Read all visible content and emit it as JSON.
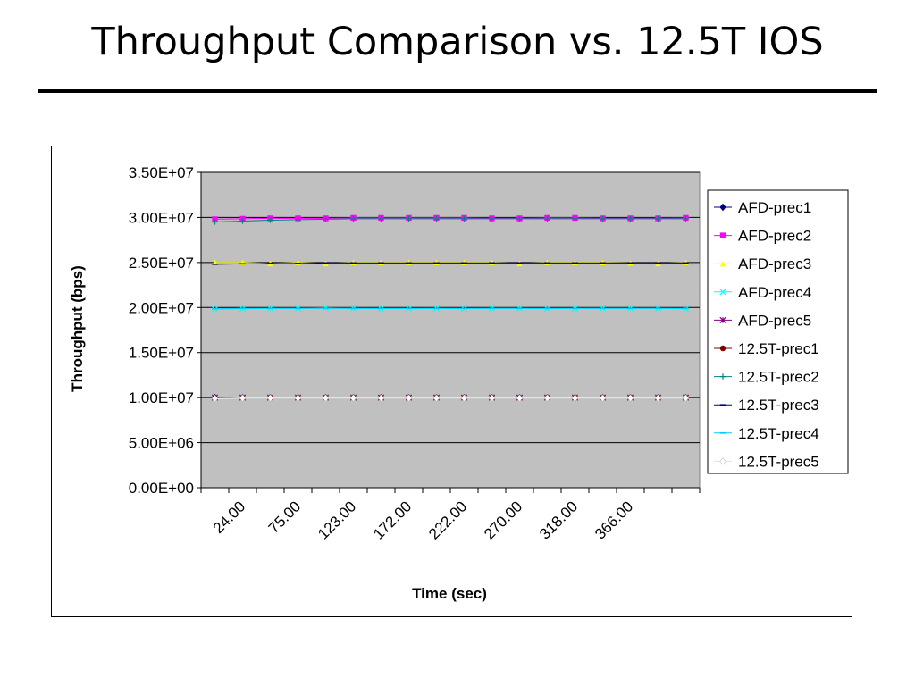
{
  "slide": {
    "title": "Throughput Comparison vs. 12.5T IOS"
  },
  "chart_data": {
    "type": "line",
    "title": "",
    "xlabel": "Time (sec)",
    "ylabel": "Throughput (bps)",
    "ylim": [
      0,
      35000000
    ],
    "y_ticks": [
      "0.00E+00",
      "5.00E+06",
      "1.00E+07",
      "1.50E+07",
      "2.00E+07",
      "2.50E+07",
      "3.00E+07",
      "3.50E+07"
    ],
    "x_tick_labels": [
      "24.00",
      "75.00",
      "123.00",
      "172.00",
      "222.00",
      "270.00",
      "318.00",
      "366.00"
    ],
    "grid": "horizontal",
    "plot_background": "#C0C0C0",
    "legend_position": "right",
    "point_count": 18,
    "series": [
      {
        "name": "AFD-prec1",
        "color": "#000080",
        "marker": "diamond",
        "values": [
          10000000,
          10000000,
          10000000,
          10000000,
          10000000,
          10000000,
          10000000,
          10000000,
          10000000,
          10000000,
          10000000,
          10000000,
          10000000,
          10000000,
          10000000,
          10000000,
          10000000,
          10000000
        ]
      },
      {
        "name": "AFD-prec2",
        "color": "#FF00FF",
        "marker": "square",
        "values": [
          29800000,
          29850000,
          29900000,
          29900000,
          29900000,
          29950000,
          29950000,
          29950000,
          29950000,
          29950000,
          29900000,
          29900000,
          29950000,
          29950000,
          29900000,
          29900000,
          29900000,
          29950000
        ]
      },
      {
        "name": "AFD-prec3",
        "color": "#FFFF00",
        "marker": "triangle",
        "values": [
          25000000,
          25000000,
          24900000,
          25000000,
          24900000,
          25000000,
          25000000,
          25000000,
          25000000,
          25000000,
          25000000,
          24900000,
          25000000,
          25000000,
          25000000,
          24950000,
          24900000,
          25000000
        ]
      },
      {
        "name": "AFD-prec4",
        "color": "#00FFFF",
        "marker": "x",
        "values": [
          19800000,
          19850000,
          19900000,
          19900000,
          19950000,
          19900000,
          19850000,
          19850000,
          19900000,
          19850000,
          19900000,
          19900000,
          19850000,
          19900000,
          19900000,
          19900000,
          19900000,
          19850000
        ]
      },
      {
        "name": "AFD-prec5",
        "color": "#800080",
        "marker": "star",
        "values": [
          10000000,
          10000000,
          10000000,
          10000000,
          10000000,
          10000000,
          10000000,
          10000000,
          10000000,
          10000000,
          10000000,
          10000000,
          10000000,
          10000000,
          10000000,
          10000000,
          10000000,
          10000000
        ]
      },
      {
        "name": "12.5T-prec1",
        "color": "#800000",
        "marker": "circle",
        "values": [
          10000000,
          10000000,
          10000000,
          10000000,
          10000000,
          10000000,
          10000000,
          10000000,
          10000000,
          10000000,
          10000000,
          10000000,
          10000000,
          10000000,
          10000000,
          10000000,
          10000000,
          10000000
        ]
      },
      {
        "name": "12.5T-prec2",
        "color": "#008080",
        "marker": "plus",
        "values": [
          29500000,
          29600000,
          29700000,
          29750000,
          29800000,
          29850000,
          29850000,
          29850000,
          29850000,
          29850000,
          29850000,
          29850000,
          29850000,
          29850000,
          29850000,
          29850000,
          29850000,
          29850000
        ]
      },
      {
        "name": "12.5T-prec3",
        "color": "#000080",
        "marker": "dash",
        "values": [
          24800000,
          24850000,
          24900000,
          24900000,
          24950000,
          24950000,
          24950000,
          24950000,
          24950000,
          24950000,
          24950000,
          24950000,
          24950000,
          24950000,
          24950000,
          24950000,
          24950000,
          24950000
        ]
      },
      {
        "name": "12.5T-prec4",
        "color": "#00CCFF",
        "marker": "dash",
        "values": [
          19850000,
          19900000,
          19900000,
          19900000,
          19900000,
          19900000,
          19900000,
          19900000,
          19900000,
          19900000,
          19900000,
          19900000,
          19900000,
          19900000,
          19900000,
          19900000,
          19900000,
          19900000
        ]
      },
      {
        "name": "12.5T-prec5",
        "color": "#FFFFFF",
        "marker": "diamond",
        "values": [
          9900000,
          9950000,
          9950000,
          9950000,
          9950000,
          9950000,
          9950000,
          9950000,
          9950000,
          9950000,
          9950000,
          9950000,
          9950000,
          9950000,
          9950000,
          9950000,
          9950000,
          9950000
        ]
      }
    ]
  }
}
